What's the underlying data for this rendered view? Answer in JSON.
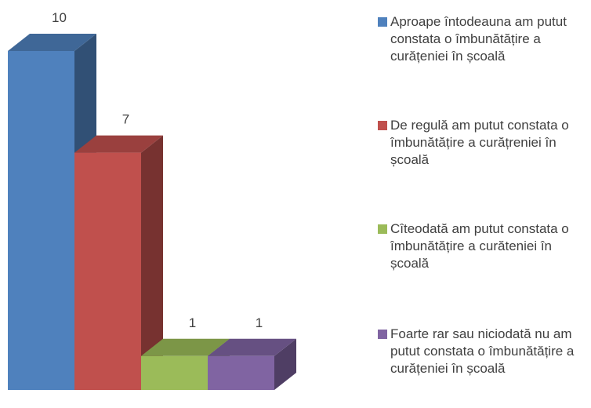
{
  "chart_data": {
    "type": "bar",
    "series": [
      {
        "name": "Aproape întodeauna am putut constata o îmbunătățire a curățeniei în școală",
        "color": "#4f81bd",
        "values": [
          10
        ]
      },
      {
        "name": "De regulă am putut constata o îmbunătățire a curățreniei în școală",
        "color": "#c0504d",
        "values": [
          7
        ]
      },
      {
        "name": "Cîteodată am putut constata o îmbunătățire a curăteniei în școală",
        "color": "#9bbb59",
        "values": [
          1
        ]
      },
      {
        "name": "Foarte rar sau niciodată nu am putut constata o îmbunătățire a curățeniei în școală",
        "color": "#8064a2",
        "values": [
          1
        ]
      }
    ]
  }
}
